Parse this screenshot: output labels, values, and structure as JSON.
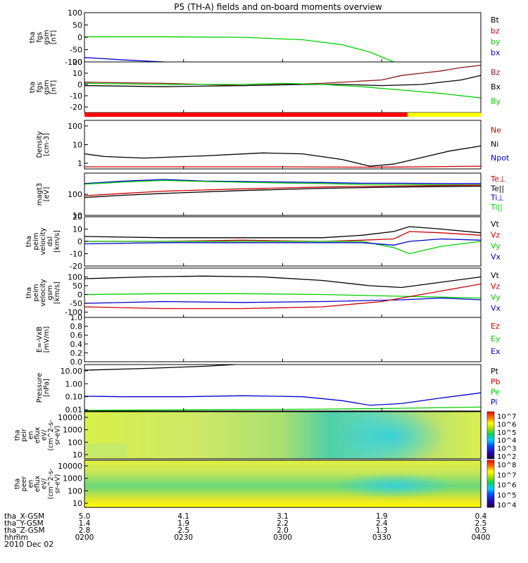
{
  "title": "P5 (TH-A) fields and on-board moments overview",
  "date_label": "2010 Dec 02",
  "colors": {
    "black": "#000000",
    "red": "#cc0000",
    "green": "#00d000",
    "blue": "#0000cc",
    "darkred": "#8b1a1a",
    "bar_red": "#ff0000",
    "bar_yellow": "#ffff00"
  },
  "orbit_rows": [
    {
      "label": "tha_X-GSM",
      "values": [
        "5.0",
        "4.1",
        "3.1",
        "1.9",
        "0.4"
      ]
    },
    {
      "label": "tha_Y-GSM",
      "values": [
        "1.4",
        "1.9",
        "2.2",
        "2.4",
        "2.5"
      ]
    },
    {
      "label": "tha_Z-GSM",
      "values": [
        "2.8",
        "2.5",
        "2.0",
        "1.3",
        "0.5"
      ]
    },
    {
      "label": "hhmm",
      "values": [
        "0200",
        "0230",
        "0300",
        "0330",
        "0400"
      ]
    }
  ],
  "chart_data": [
    {
      "type": "line",
      "id": "fgs_gse",
      "ylabel": [
        "tha",
        "fgs",
        "gsm",
        "[nT]"
      ],
      "ylim": [
        -100,
        100
      ],
      "yticks": [
        "100",
        "50",
        "0",
        "-50",
        "-100"
      ],
      "ytick_values": [
        100,
        50,
        0,
        -50,
        -100
      ],
      "legend": [
        {
          "name": "Bt",
          "color": "#000000"
        },
        {
          "name": "bz",
          "color": "#cc0000"
        },
        {
          "name": "by",
          "color": "#00d000"
        },
        {
          "name": "bx",
          "color": "#0000cc"
        }
      ],
      "series": [
        {
          "name": "by",
          "color": "#00d000",
          "x": [
            0,
            0.2,
            0.4,
            0.55,
            0.65,
            0.72,
            0.78
          ],
          "y": [
            2,
            2,
            0,
            -10,
            -30,
            -60,
            -100
          ]
        },
        {
          "name": "bx",
          "color": "#0000cc",
          "x": [
            0,
            0.1,
            0.2
          ],
          "y": [
            -82,
            -92,
            -100
          ]
        }
      ]
    },
    {
      "type": "line",
      "id": "fgs_gsm",
      "ylabel": [
        "tha",
        "fgs",
        "gsm",
        "[nT]"
      ],
      "ylim": [
        -25,
        20
      ],
      "yticks": [
        "20",
        "10",
        "0",
        "-10",
        "-20"
      ],
      "ytick_values": [
        20,
        10,
        0,
        -10,
        -20
      ],
      "legend": [
        {
          "name": "Bz",
          "color": "#8b1a1a"
        },
        {
          "name": "Bx",
          "color": "#000000"
        },
        {
          "name": "By",
          "color": "#00d000"
        }
      ],
      "series": [
        {
          "name": "Bz",
          "color": "#8b1a1a",
          "x": [
            0,
            0.2,
            0.4,
            0.6,
            0.7,
            0.75,
            0.8,
            0.85,
            0.9,
            0.95,
            1.0
          ],
          "y": [
            2,
            1,
            -1,
            1,
            3,
            4,
            8,
            10,
            12,
            15,
            17
          ]
        },
        {
          "name": "Bx",
          "color": "#000000",
          "x": [
            0,
            0.2,
            0.4,
            0.55,
            0.65,
            0.75,
            0.85,
            0.95,
            1.0
          ],
          "y": [
            -1,
            -2,
            -1,
            0,
            0,
            -1,
            0,
            4,
            8
          ]
        },
        {
          "name": "By",
          "color": "#00d000",
          "x": [
            0,
            0.2,
            0.4,
            0.5,
            0.6,
            0.7,
            0.8,
            0.9,
            1.0
          ],
          "y": [
            1,
            0,
            0,
            1,
            0,
            -2,
            -5,
            -8,
            -12
          ]
        }
      ]
    },
    {
      "type": "line",
      "id": "density",
      "ylabel": [
        "Density",
        "[cm-3]"
      ],
      "log": true,
      "ylim": [
        0.5,
        200
      ],
      "yticks": [
        "100",
        "10",
        "1"
      ],
      "ytick_values": [
        100,
        10,
        1
      ],
      "legend": [
        {
          "name": "Ne",
          "color": "#cc0000"
        },
        {
          "name": "Ni",
          "color": "#000000"
        },
        {
          "name": "Npot",
          "color": "#0000cc"
        }
      ],
      "series": [
        {
          "name": "Ni",
          "color": "#000000",
          "x": [
            0,
            0.05,
            0.15,
            0.3,
            0.45,
            0.55,
            0.65,
            0.72,
            0.78,
            0.85,
            0.92,
            1.0
          ],
          "y": [
            3.2,
            2.3,
            1.9,
            2.5,
            3.6,
            3.2,
            1.6,
            0.7,
            0.9,
            2.0,
            4.5,
            8.5
          ]
        },
        {
          "name": "Ne",
          "color": "#cc0000",
          "x": [
            0,
            0.5,
            0.7,
            0.8,
            1.0
          ],
          "y": [
            0.65,
            0.65,
            0.62,
            0.63,
            0.7
          ]
        }
      ]
    },
    {
      "type": "line",
      "id": "temperature",
      "ylabel": [
        "magt3",
        "[eV]"
      ],
      "log": true,
      "ylim": [
        10,
        1000
      ],
      "yticks": [
        "100",
        "10"
      ],
      "ytick_values": [
        100,
        10
      ],
      "legend": [
        {
          "name": "Te⊥",
          "color": "#cc0000"
        },
        {
          "name": "Te||",
          "color": "#000000"
        },
        {
          "name": "Ti⊥",
          "color": "#0000cc"
        },
        {
          "name": "Ti||",
          "color": "#00d000"
        }
      ],
      "series": [
        {
          "name": "Ti⊥",
          "color": "#0000cc",
          "x": [
            0,
            0.1,
            0.2,
            0.3,
            0.4,
            0.5,
            0.6,
            0.7,
            0.8,
            0.9,
            1.0
          ],
          "y": [
            320,
            420,
            500,
            420,
            400,
            380,
            360,
            330,
            330,
            320,
            320
          ]
        },
        {
          "name": "Ti||",
          "color": "#00d000",
          "x": [
            0,
            0.1,
            0.2,
            0.3,
            0.4,
            0.5,
            0.6,
            0.7,
            0.8,
            0.9,
            1.0
          ],
          "y": [
            300,
            380,
            450,
            400,
            370,
            340,
            320,
            290,
            290,
            280,
            280
          ]
        },
        {
          "name": "Te||",
          "color": "#000000",
          "x": [
            0,
            0.1,
            0.2,
            0.4,
            0.6,
            0.8,
            1.0
          ],
          "y": [
            70,
            90,
            110,
            150,
            190,
            220,
            240
          ]
        },
        {
          "name": "Te⊥",
          "color": "#cc0000",
          "x": [
            0,
            0.1,
            0.2,
            0.4,
            0.6,
            0.8,
            1.0
          ],
          "y": [
            85,
            110,
            140,
            180,
            220,
            250,
            270
          ]
        }
      ]
    },
    {
      "type": "line",
      "id": "velocity_dsl",
      "ylabel": [
        "tha",
        "peim",
        "velocity",
        "dsl",
        "[km/s]"
      ],
      "ylim": [
        -20,
        20
      ],
      "yticks": [
        "20",
        "10",
        "0",
        "-10",
        "-20"
      ],
      "ytick_values": [
        20,
        10,
        0,
        -10,
        -20
      ],
      "legend": [
        {
          "name": "Vt",
          "color": "#000000"
        },
        {
          "name": "Vz",
          "color": "#cc0000"
        },
        {
          "name": "Vy",
          "color": "#00d000"
        },
        {
          "name": "Vx",
          "color": "#0000cc"
        }
      ],
      "series": [
        {
          "name": "Vt",
          "color": "#000000",
          "x": [
            0,
            0.2,
            0.4,
            0.6,
            0.7,
            0.78,
            0.82,
            0.9,
            1.0
          ],
          "y": [
            4,
            3,
            3,
            3,
            5,
            8,
            12,
            10,
            7
          ]
        },
        {
          "name": "Vz",
          "color": "#cc0000",
          "x": [
            0,
            0.2,
            0.4,
            0.6,
            0.7,
            0.78,
            0.82,
            0.9,
            1.0
          ],
          "y": [
            0,
            0,
            1,
            0,
            1,
            2,
            8,
            7,
            5
          ]
        },
        {
          "name": "Vy",
          "color": "#00d000",
          "x": [
            0,
            0.2,
            0.4,
            0.6,
            0.7,
            0.78,
            0.82,
            0.9,
            1.0
          ],
          "y": [
            0,
            0,
            0,
            0,
            0,
            -5,
            -10,
            -4,
            0
          ]
        },
        {
          "name": "Vx",
          "color": "#0000cc",
          "x": [
            0,
            0.2,
            0.4,
            0.6,
            0.7,
            0.78,
            0.82,
            0.9,
            1.0
          ],
          "y": [
            -2,
            -1,
            -1,
            -1,
            -1,
            -3,
            0,
            2,
            1
          ]
        }
      ]
    },
    {
      "type": "line",
      "id": "velocity_gsm",
      "ylabel": [
        "tha",
        "peim",
        "velocity",
        "gsm",
        "[km/s]"
      ],
      "ylim": [
        -130,
        150
      ],
      "yticks": [
        "100",
        "50",
        "0",
        "-50",
        "-100"
      ],
      "ytick_values": [
        100,
        50,
        0,
        -50,
        -100
      ],
      "legend": [
        {
          "name": "Vt",
          "color": "#000000"
        },
        {
          "name": "Vz",
          "color": "#cc0000"
        },
        {
          "name": "Vy",
          "color": "#00d000"
        },
        {
          "name": "Vx",
          "color": "#0000cc"
        }
      ],
      "series": [
        {
          "name": "Vt",
          "color": "#000000",
          "x": [
            0,
            0.15,
            0.3,
            0.45,
            0.6,
            0.72,
            0.8,
            0.9,
            1.0
          ],
          "y": [
            90,
            100,
            105,
            100,
            80,
            50,
            40,
            70,
            100
          ]
        },
        {
          "name": "Vy",
          "color": "#00d000",
          "x": [
            0,
            0.2,
            0.4,
            0.6,
            0.8,
            1.0
          ],
          "y": [
            0,
            5,
            5,
            0,
            -10,
            -20
          ]
        },
        {
          "name": "Vx",
          "color": "#0000cc",
          "x": [
            0,
            0.2,
            0.4,
            0.6,
            0.8,
            0.9,
            1.0
          ],
          "y": [
            -50,
            -40,
            -45,
            -40,
            -30,
            -20,
            -30
          ]
        },
        {
          "name": "Vz",
          "color": "#cc0000",
          "x": [
            0,
            0.2,
            0.4,
            0.6,
            0.75,
            0.85,
            0.95,
            1.0
          ],
          "y": [
            -70,
            -80,
            -80,
            -70,
            -40,
            0,
            40,
            60
          ]
        }
      ]
    },
    {
      "type": "line",
      "id": "efield",
      "ylabel": [
        "E=-VxB",
        "[mV/m]"
      ],
      "ylim": [
        0,
        1
      ],
      "yticks": [
        "1.0",
        "0.8",
        "0.6",
        "0.4",
        "0.2",
        "0.0"
      ],
      "ytick_values": [
        1.0,
        0.8,
        0.6,
        0.4,
        0.2,
        0.0
      ],
      "legend": [
        {
          "name": "Ez",
          "color": "#cc0000"
        },
        {
          "name": "Ey",
          "color": "#00d000"
        },
        {
          "name": "Ex",
          "color": "#0000cc"
        }
      ],
      "series": []
    },
    {
      "type": "line",
      "id": "pressure",
      "ylabel": [
        "Pressure",
        "[nPa]"
      ],
      "log": true,
      "ylim": [
        0.008,
        30
      ],
      "yticks": [
        "10.00",
        "1.00",
        "0.10",
        "0.01"
      ],
      "ytick_values": [
        10,
        1,
        0.1,
        0.01
      ],
      "legend": [
        {
          "name": "Pt",
          "color": "#000000"
        },
        {
          "name": "Pb",
          "color": "#cc0000"
        },
        {
          "name": "Pe",
          "color": "#00d000"
        },
        {
          "name": "Pi",
          "color": "#0000cc"
        }
      ],
      "series": [
        {
          "name": "Pt",
          "color": "#000000",
          "x": [
            0,
            0.15,
            0.3,
            0.38
          ],
          "y": [
            11,
            15,
            22,
            30
          ]
        },
        {
          "name": "Pi",
          "color": "#0000cc",
          "x": [
            0,
            0.1,
            0.25,
            0.4,
            0.55,
            0.65,
            0.72,
            0.8,
            0.9,
            1.0
          ],
          "y": [
            0.11,
            0.1,
            0.1,
            0.12,
            0.1,
            0.05,
            0.022,
            0.03,
            0.08,
            0.2
          ]
        },
        {
          "name": "Pe",
          "color": "#00d000",
          "x": [
            0,
            0.3,
            0.6,
            0.8,
            1.0
          ],
          "y": [
            0.009,
            0.01,
            0.011,
            0.013,
            0.016
          ]
        }
      ]
    },
    {
      "type": "heatmap",
      "id": "ion_spectrogram",
      "ylabel": [
        "tha",
        "peir",
        "en",
        "eflux",
        "eV/",
        "(cm^2-s-",
        "sr-eV)"
      ],
      "yticks": [
        "10000",
        "1000",
        "100",
        "10"
      ],
      "colorbar_ticks": [
        "10^7",
        "10^6",
        "10^5",
        "10^4",
        "10^3",
        "10^2"
      ]
    },
    {
      "type": "heatmap",
      "id": "electron_spectrogram",
      "ylabel": [
        "tha",
        "peer",
        "en",
        "eflux",
        "eV/",
        "(cm^2-s-",
        "sr-eV)"
      ],
      "yticks": [
        "10000",
        "1000",
        "100",
        "10"
      ],
      "colorbar_ticks": [
        "10^8",
        "10^7",
        "10^6",
        "10^5",
        "10^4"
      ]
    }
  ]
}
